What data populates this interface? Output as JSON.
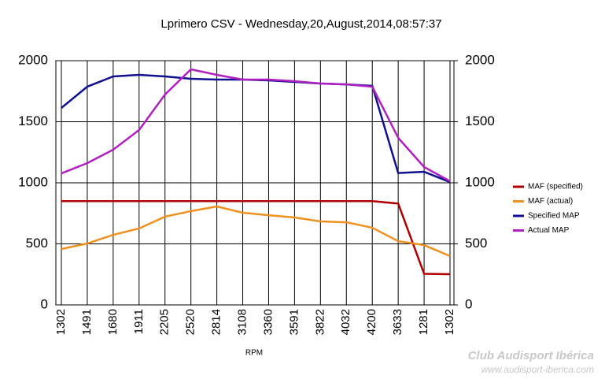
{
  "chart_data": {
    "type": "line",
    "title": "Lprimero CSV - Wednesday,20,August,2014,08:57:37",
    "x_label": "RPM",
    "categories": [
      "1302",
      "1491",
      "1680",
      "1911",
      "2205",
      "2520",
      "2814",
      "3108",
      "3360",
      "3591",
      "3822",
      "4032",
      "4200",
      "3633",
      "1281",
      "1302"
    ],
    "series": [
      {
        "name": "MAF (specified)",
        "color": "#b00000",
        "values": [
          850,
          850,
          850,
          850,
          850,
          850,
          850,
          850,
          850,
          850,
          850,
          850,
          850,
          830,
          255,
          252
        ]
      },
      {
        "name": "MAF (actual)",
        "color": "#f0901e",
        "values": [
          458,
          503,
          574,
          626,
          723,
          768,
          806,
          755,
          735,
          716,
          684,
          677,
          632,
          522,
          490,
          400
        ]
      },
      {
        "name": "Specified MAP",
        "color": "#101090",
        "values": [
          1613,
          1787,
          1871,
          1884,
          1871,
          1852,
          1845,
          1845,
          1839,
          1826,
          1813,
          1806,
          1794,
          1080,
          1090,
          1006
        ]
      },
      {
        "name": "Actual MAP",
        "color": "#b020c0",
        "values": [
          1077,
          1161,
          1271,
          1432,
          1723,
          1929,
          1884,
          1845,
          1845,
          1832,
          1813,
          1806,
          1787,
          1368,
          1129,
          1013
        ]
      }
    ],
    "ylim": [
      0,
      2000
    ],
    "yticks": [
      0,
      500,
      1000,
      1500,
      2000
    ],
    "y2lim": [
      0,
      2000
    ],
    "y2ticks": [
      0,
      500,
      1000,
      1500,
      2000
    ],
    "grid": true,
    "legend": "right",
    "annotations": [
      "Club Audisport Ibérica",
      "www.audisport-iberica.com"
    ]
  }
}
